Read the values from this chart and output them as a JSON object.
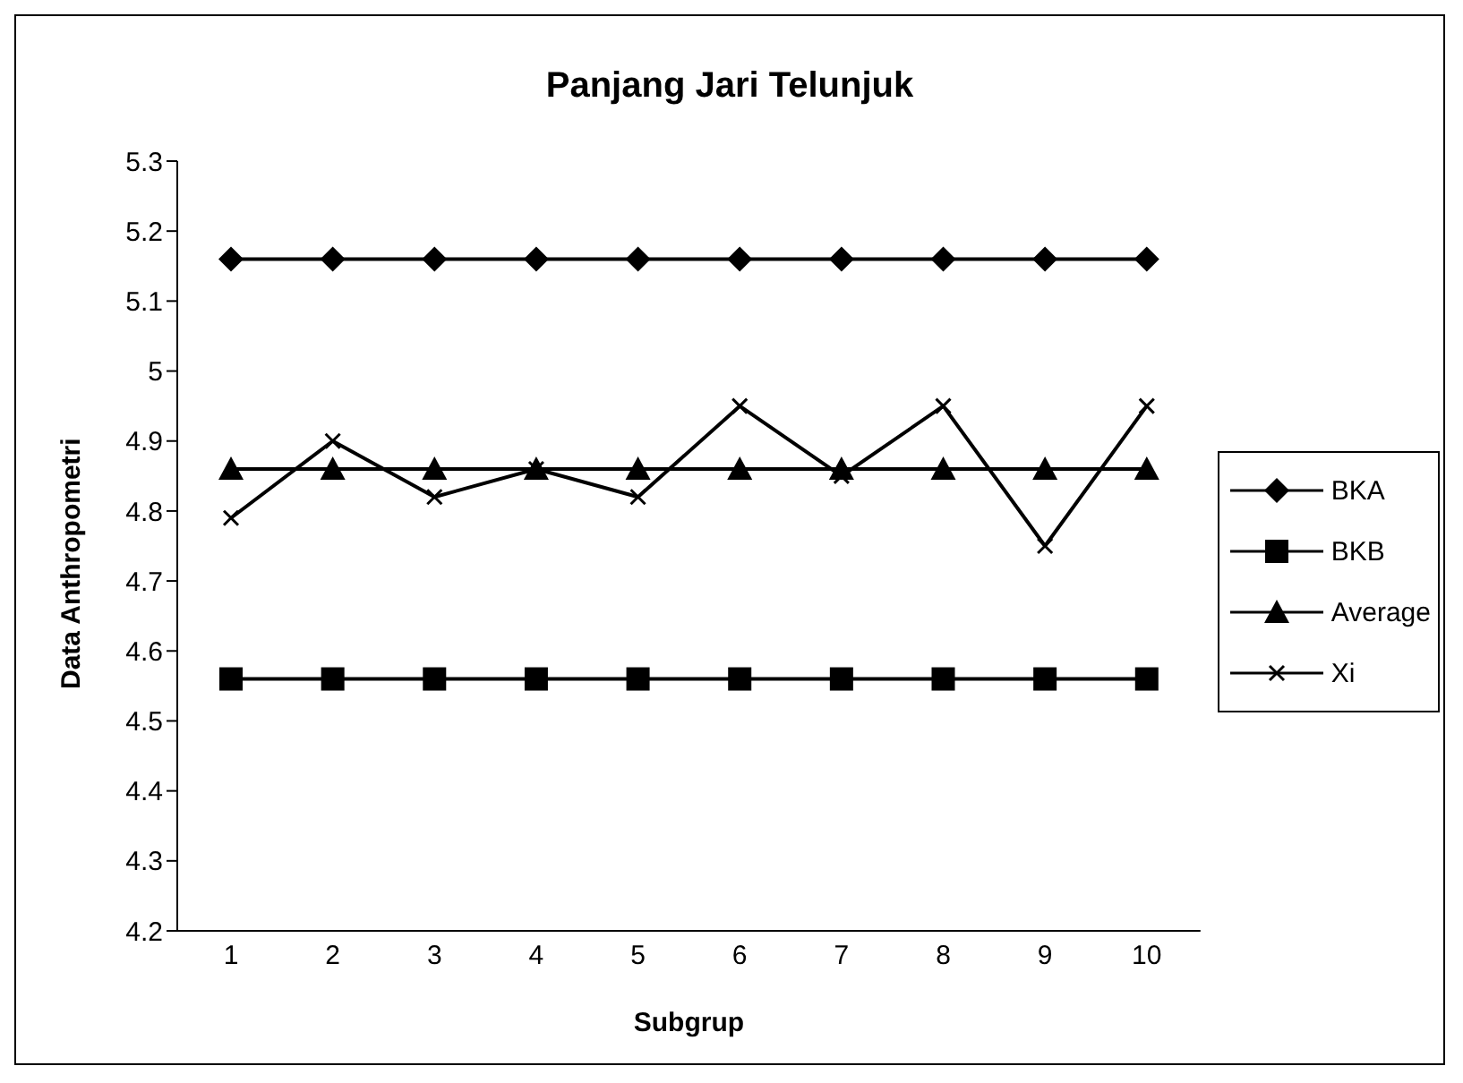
{
  "chart_data": {
    "type": "line",
    "title": "Panjang Jari Telunjuk",
    "xlabel": "Subgrup",
    "ylabel": "Data Anthropometri",
    "categories": [
      "1",
      "2",
      "3",
      "4",
      "5",
      "6",
      "7",
      "8",
      "9",
      "10"
    ],
    "series": [
      {
        "name": "BKA",
        "color": "#000000",
        "marker": "diamond",
        "values": [
          5.16,
          5.16,
          5.16,
          5.16,
          5.16,
          5.16,
          5.16,
          5.16,
          5.16,
          5.16
        ]
      },
      {
        "name": "BKB",
        "color": "#000000",
        "marker": "square",
        "values": [
          4.56,
          4.56,
          4.56,
          4.56,
          4.56,
          4.56,
          4.56,
          4.56,
          4.56,
          4.56
        ]
      },
      {
        "name": "Average",
        "color": "#000000",
        "marker": "triangle",
        "values": [
          4.86,
          4.86,
          4.86,
          4.86,
          4.86,
          4.86,
          4.86,
          4.86,
          4.86,
          4.86
        ]
      },
      {
        "name": "Xi",
        "color": "#000000",
        "marker": "cross",
        "values": [
          4.79,
          4.9,
          4.82,
          4.86,
          4.82,
          4.95,
          4.85,
          4.95,
          4.75,
          4.95
        ]
      }
    ],
    "ylim": [
      4.2,
      5.3
    ],
    "yticks": [
      4.2,
      4.3,
      4.4,
      4.5,
      4.6,
      4.7,
      4.8,
      4.9,
      5,
      5.1,
      5.2,
      5.3
    ],
    "grid": false,
    "legend": "right",
    "line_style": "solid"
  }
}
